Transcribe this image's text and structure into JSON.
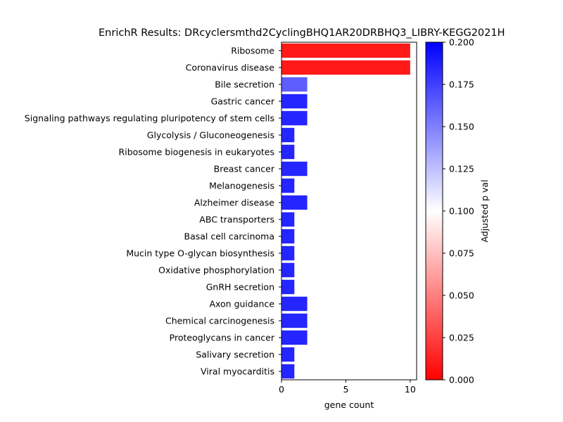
{
  "chart_data": {
    "type": "bar",
    "orientation": "horizontal",
    "title": "EnrichR Results: DRcyclersmthd2CyclingBHQ1AR20DRBHQ3_LIBRY-KEGG2021H",
    "xlabel": "gene count",
    "ylabel": "",
    "xlim": [
      0,
      10.5
    ],
    "xticks": [
      0,
      5,
      10
    ],
    "grid": false,
    "categories": [
      "Ribosome",
      "Coronavirus disease",
      "Bile secretion",
      "Gastric cancer",
      "Signaling pathways regulating pluripotency of stem cells",
      "Glycolysis / Gluconeogenesis",
      "Ribosome biogenesis in eukaryotes",
      "Breast cancer",
      "Melanogenesis",
      "Alzheimer disease",
      "ABC transporters",
      "Basal cell carcinoma",
      "Mucin type O-glycan biosynthesis",
      "Oxidative phosphorylation",
      "GnRH secretion",
      "Axon guidance",
      "Chemical carcinogenesis",
      "Proteoglycans in cancer",
      "Salivary secretion",
      "Viral myocarditis"
    ],
    "values": [
      10,
      10,
      2,
      2,
      2,
      1,
      1,
      2,
      1,
      2,
      1,
      1,
      1,
      1,
      1,
      2,
      2,
      2,
      1,
      1
    ],
    "adjusted_p_values": [
      0.0,
      0.0,
      0.17,
      0.195,
      0.195,
      0.195,
      0.195,
      0.195,
      0.195,
      0.195,
      0.195,
      0.195,
      0.195,
      0.195,
      0.195,
      0.195,
      0.195,
      0.195,
      0.195,
      0.195
    ],
    "colorbar": {
      "label": "Adjusted p val",
      "range": [
        0.0,
        0.2
      ],
      "ticks": [
        "0.000",
        "0.025",
        "0.050",
        "0.075",
        "0.100",
        "0.125",
        "0.150",
        "0.175",
        "0.200"
      ],
      "colormap": [
        "#ff0000",
        "#ffffff",
        "#0000ff"
      ]
    }
  }
}
